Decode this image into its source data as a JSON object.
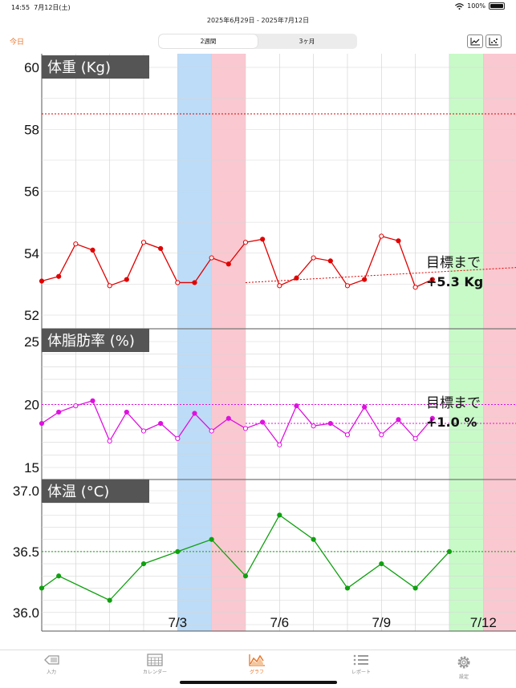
{
  "status": {
    "time": "14:55",
    "date": "7月12日(土)",
    "battery": "100%"
  },
  "header": {
    "date_range": "2025年6月29日 - 2025年7月12日",
    "today_label": "今日"
  },
  "segment": {
    "options": [
      "2週間",
      "3ヶ月"
    ],
    "selected": 0
  },
  "graph_buttons": [
    "line-chart-icon",
    "scatter-chart-icon"
  ],
  "chart_data": [
    {
      "type": "line",
      "title": "体重 (Kg)",
      "x_start": "2025-06-29",
      "ylim": [
        52,
        60
      ],
      "ytick_labels": [
        "52",
        "54",
        "56",
        "58",
        "60"
      ],
      "goal": 58.5,
      "trend_line": [
        {
          "x": "2025-07-05",
          "y": 53.05
        },
        {
          "x": "2025-07-14",
          "y": 53.6
        }
      ],
      "annotation": [
        "目標まで",
        "+5.3 Kg"
      ],
      "series": [
        {
          "color": "#e00000",
          "points": [
            {
              "x": "2025-06-29",
              "y": 53.1
            },
            {
              "x": "2025-06-29 12:00",
              "y": 53.25
            },
            {
              "x": "2025-06-30",
              "y": 54.3
            },
            {
              "x": "2025-06-30 12:00",
              "y": 54.1
            },
            {
              "x": "2025-07-01",
              "y": 52.95
            },
            {
              "x": "2025-07-01 12:00",
              "y": 53.15
            },
            {
              "x": "2025-07-02",
              "y": 54.35
            },
            {
              "x": "2025-07-02 12:00",
              "y": 54.15
            },
            {
              "x": "2025-07-03",
              "y": 53.05
            },
            {
              "x": "2025-07-03 12:00",
              "y": 53.05
            },
            {
              "x": "2025-07-04",
              "y": 53.85
            },
            {
              "x": "2025-07-04 12:00",
              "y": 53.65
            },
            {
              "x": "2025-07-05",
              "y": 54.35
            },
            {
              "x": "2025-07-05 12:00",
              "y": 54.45
            },
            {
              "x": "2025-07-06",
              "y": 52.95
            },
            {
              "x": "2025-07-06 12:00",
              "y": 53.2
            },
            {
              "x": "2025-07-07",
              "y": 53.85
            },
            {
              "x": "2025-07-07 12:00",
              "y": 53.75
            },
            {
              "x": "2025-07-08",
              "y": 52.95
            },
            {
              "x": "2025-07-08 12:00",
              "y": 53.15
            },
            {
              "x": "2025-07-09",
              "y": 54.55
            },
            {
              "x": "2025-07-09 12:00",
              "y": 54.4
            },
            {
              "x": "2025-07-10",
              "y": 52.9
            },
            {
              "x": "2025-07-10 12:00",
              "y": 53.15
            }
          ]
        }
      ]
    },
    {
      "type": "line",
      "title": "体脂肪率 (%)",
      "ylim": [
        15,
        25
      ],
      "ytick_labels": [
        "15",
        "20",
        "25"
      ],
      "goal": 20,
      "trend_line": [
        {
          "x": "2025-07-05",
          "y": 18.5
        },
        {
          "x": "2025-07-14",
          "y": 18.5
        }
      ],
      "annotation": [
        "目標まで",
        "+1.0 %"
      ],
      "series": [
        {
          "color": "#e010e0",
          "points": [
            {
              "x": "2025-06-29",
              "y": 18.5
            },
            {
              "x": "2025-06-29 12:00",
              "y": 19.4
            },
            {
              "x": "2025-06-30",
              "y": 19.9
            },
            {
              "x": "2025-06-30 12:00",
              "y": 20.3
            },
            {
              "x": "2025-07-01",
              "y": 17.1
            },
            {
              "x": "2025-07-01 12:00",
              "y": 19.4
            },
            {
              "x": "2025-07-02",
              "y": 17.9
            },
            {
              "x": "2025-07-02 12:00",
              "y": 18.5
            },
            {
              "x": "2025-07-03",
              "y": 17.3
            },
            {
              "x": "2025-07-03 12:00",
              "y": 19.3
            },
            {
              "x": "2025-07-04",
              "y": 17.9
            },
            {
              "x": "2025-07-04 12:00",
              "y": 18.9
            },
            {
              "x": "2025-07-05",
              "y": 18.1
            },
            {
              "x": "2025-07-05 12:00",
              "y": 18.6
            },
            {
              "x": "2025-07-06",
              "y": 16.8
            },
            {
              "x": "2025-07-06 12:00",
              "y": 19.9
            },
            {
              "x": "2025-07-07",
              "y": 18.3
            },
            {
              "x": "2025-07-07 12:00",
              "y": 18.5
            },
            {
              "x": "2025-07-08",
              "y": 17.6
            },
            {
              "x": "2025-07-08 12:00",
              "y": 19.8
            },
            {
              "x": "2025-07-09",
              "y": 17.6
            },
            {
              "x": "2025-07-09 12:00",
              "y": 18.8
            },
            {
              "x": "2025-07-10",
              "y": 17.3
            },
            {
              "x": "2025-07-10 12:00",
              "y": 18.9
            }
          ]
        }
      ]
    },
    {
      "type": "line",
      "title": "体温 (°C)",
      "ylim": [
        35.9,
        37.0
      ],
      "ytick_labels": [
        "36.0",
        "36.5",
        "37.0"
      ],
      "goal": 36.5,
      "series": [
        {
          "color": "#10a010",
          "points": [
            {
              "x": "2025-06-29",
              "y": 36.2
            },
            {
              "x": "2025-06-29 12:00",
              "y": 36.3
            },
            {
              "x": "2025-07-01",
              "y": 36.1
            },
            {
              "x": "2025-07-02",
              "y": 36.4
            },
            {
              "x": "2025-07-03",
              "y": 36.5
            },
            {
              "x": "2025-07-04",
              "y": 36.6
            },
            {
              "x": "2025-07-05",
              "y": 36.3
            },
            {
              "x": "2025-07-06",
              "y": 36.8
            },
            {
              "x": "2025-07-07",
              "y": 36.6
            },
            {
              "x": "2025-07-08",
              "y": 36.2
            },
            {
              "x": "2025-07-09",
              "y": 36.4
            },
            {
              "x": "2025-07-10",
              "y": 36.2
            },
            {
              "x": "2025-07-11",
              "y": 36.5
            }
          ]
        }
      ]
    }
  ],
  "x_labels": [
    {
      "label": "7/3",
      "x": "2025-07-03"
    },
    {
      "label": "7/6",
      "x": "2025-07-06"
    },
    {
      "label": "7/9",
      "x": "2025-07-09"
    },
    {
      "label": "7/12",
      "x": "2025-07-12"
    }
  ],
  "bands": [
    {
      "from": "2025-07-03",
      "to": "2025-07-04",
      "color": "#bcdcf8"
    },
    {
      "from": "2025-07-04",
      "to": "2025-07-05",
      "color": "#fac8d0"
    },
    {
      "from": "2025-07-11",
      "to": "2025-07-12",
      "color": "#c8fac8"
    },
    {
      "from": "2025-07-12",
      "to": "2025-07-13",
      "color": "#fac8d0"
    }
  ],
  "tabs": [
    {
      "label": "入力",
      "icon": "input-icon"
    },
    {
      "label": "カレンダー",
      "icon": "calendar-icon"
    },
    {
      "label": "グラフ",
      "icon": "graph-icon"
    },
    {
      "label": "レポート",
      "icon": "report-icon"
    },
    {
      "label": "設定",
      "icon": "gear-icon"
    }
  ],
  "active_tab": 2
}
